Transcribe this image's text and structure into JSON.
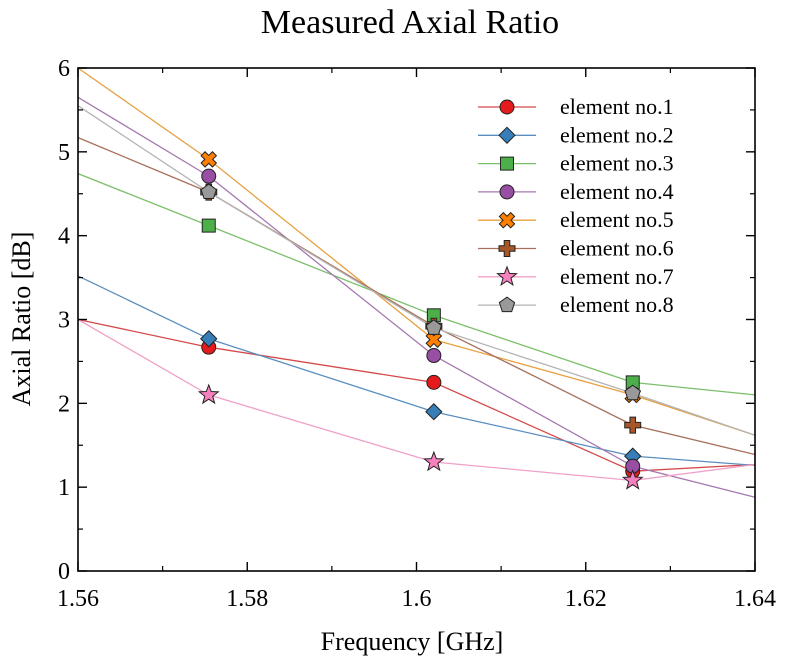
{
  "chart_data": {
    "type": "line",
    "title": "Measured Axial Ratio",
    "xlabel": "Frequency [GHz]",
    "ylabel": "Axial Ratio [dB]",
    "xlim": [
      1.56,
      1.64
    ],
    "ylim": [
      0,
      6
    ],
    "x_ticks": [
      1.56,
      1.58,
      1.6,
      1.62,
      1.64
    ],
    "x_tick_labels": [
      "1.56",
      "1.58",
      "1.6",
      "1.62",
      "1.64"
    ],
    "y_ticks": [
      0,
      1,
      2,
      3,
      4,
      5,
      6
    ],
    "y_tick_labels": [
      "0",
      "1",
      "2",
      "3",
      "4",
      "5",
      "6"
    ],
    "grid": false,
    "legend_position": "top-right",
    "x": [
      1.57545,
      1.60205,
      1.62555
    ],
    "series": [
      {
        "name": "element no.1",
        "marker": "circle",
        "color": "#e41a1c",
        "line_color": "#d44a4a",
        "values": [
          2.67,
          2.25,
          1.19
        ],
        "trend": [
          [
            1.56,
            3.0
          ],
          [
            1.57545,
            2.67
          ],
          [
            1.60205,
            2.25
          ],
          [
            1.62555,
            1.19
          ],
          [
            1.64,
            1.27
          ]
        ]
      },
      {
        "name": "element no.2",
        "marker": "diamond",
        "color": "#377eb8",
        "line_color": "#5a8ec0",
        "values": [
          2.77,
          1.9,
          1.37
        ],
        "trend": [
          [
            1.56,
            3.52
          ],
          [
            1.57545,
            2.77
          ],
          [
            1.60205,
            1.9
          ],
          [
            1.62555,
            1.37
          ],
          [
            1.64,
            1.26
          ]
        ]
      },
      {
        "name": "element no.3",
        "marker": "square",
        "color": "#4daf4a",
        "line_color": "#7cbf6a",
        "values": [
          4.12,
          3.05,
          2.25
        ],
        "trend": [
          [
            1.56,
            4.74
          ],
          [
            1.57545,
            4.12
          ],
          [
            1.60205,
            3.05
          ],
          [
            1.62555,
            2.25
          ],
          [
            1.64,
            2.1
          ]
        ]
      },
      {
        "name": "element no.4",
        "marker": "circle",
        "color": "#984ea3",
        "line_color": "#a678b0",
        "values": [
          4.71,
          2.57,
          1.25
        ],
        "trend": [
          [
            1.56,
            5.65
          ],
          [
            1.57545,
            4.71
          ],
          [
            1.60205,
            2.57
          ],
          [
            1.62555,
            1.25
          ],
          [
            1.64,
            0.88
          ]
        ]
      },
      {
        "name": "element no.5",
        "marker": "x",
        "color": "#ff7f00",
        "line_color": "#e8a040",
        "values": [
          4.91,
          2.76,
          2.1
        ],
        "trend": [
          [
            1.56,
            6.0
          ],
          [
            1.57545,
            4.91
          ],
          [
            1.60205,
            2.76
          ],
          [
            1.62555,
            2.1
          ],
          [
            1.64,
            1.62
          ]
        ]
      },
      {
        "name": "element no.6",
        "marker": "plus",
        "color": "#a65628",
        "line_color": "#a8705a",
        "values": [
          4.52,
          2.92,
          1.74
        ],
        "trend": [
          [
            1.56,
            5.17
          ],
          [
            1.57545,
            4.52
          ],
          [
            1.60205,
            2.92
          ],
          [
            1.62555,
            1.74
          ],
          [
            1.64,
            1.39
          ]
        ]
      },
      {
        "name": "element no.7",
        "marker": "star",
        "color": "#f781bf",
        "line_color": "#f0a0c8",
        "values": [
          2.1,
          1.3,
          1.08
        ],
        "trend": [
          [
            1.56,
            3.0
          ],
          [
            1.57545,
            2.1
          ],
          [
            1.60205,
            1.3
          ],
          [
            1.62555,
            1.08
          ],
          [
            1.64,
            1.27
          ]
        ]
      },
      {
        "name": "element no.8",
        "marker": "pentagon",
        "color": "#999999",
        "line_color": "#b4b4b4",
        "values": [
          4.52,
          2.9,
          2.12
        ],
        "trend": [
          [
            1.56,
            5.55
          ],
          [
            1.57545,
            4.52
          ],
          [
            1.60205,
            2.9
          ],
          [
            1.62555,
            2.12
          ],
          [
            1.64,
            1.62
          ]
        ]
      }
    ]
  }
}
